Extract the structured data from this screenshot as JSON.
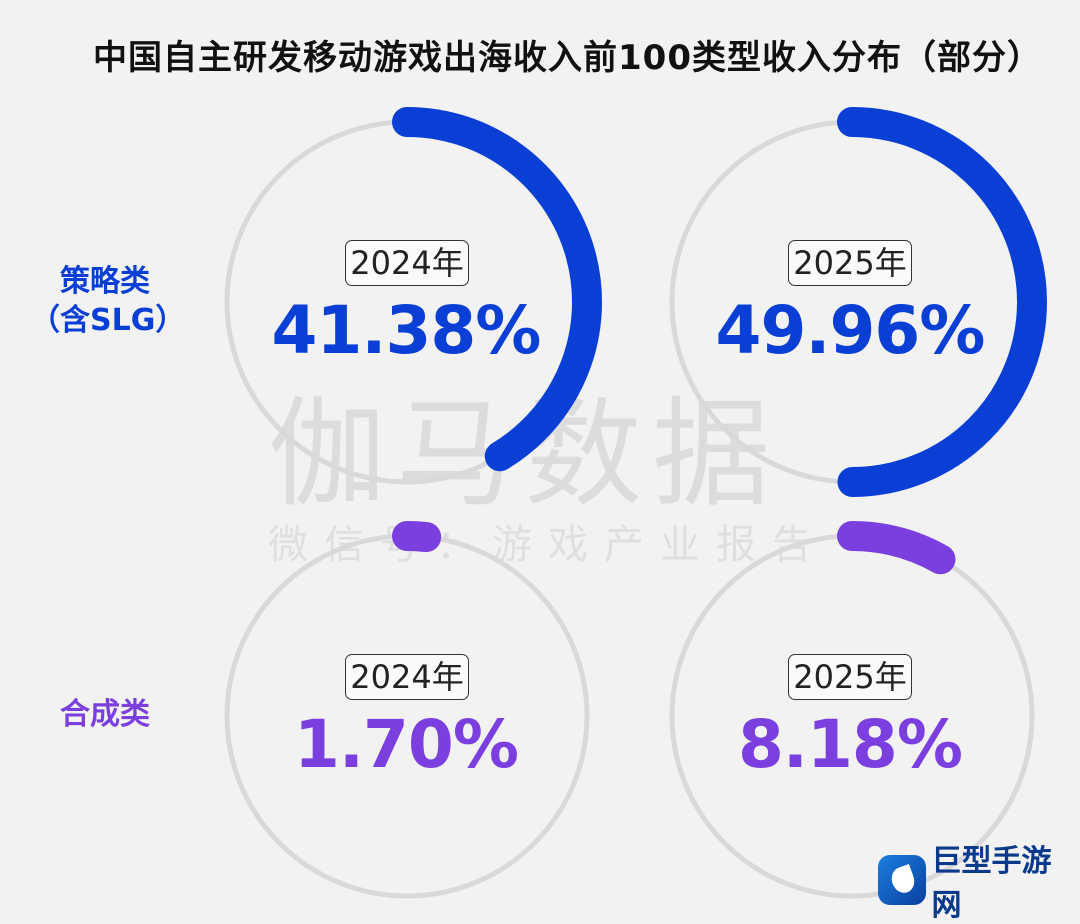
{
  "title": "中国自主研发移动游戏出海收入前100类型收入分布（部分）",
  "colors": {
    "strategy": "#0a3fd6",
    "merge": "#7b3fe0",
    "track": "#d9d9dc"
  },
  "chart_data": {
    "type": "donut",
    "title": "中国自主研发移动游戏出海收入前100类型收入分布（部分）",
    "rows": [
      {
        "category": "策略类（含SLG）",
        "label_line1": "策略类",
        "label_line2": "（含SLG）",
        "color": "#0a3fd6",
        "cells": [
          {
            "year": "2024年",
            "value": 41.38,
            "label": "41.38%"
          },
          {
            "year": "2025年",
            "value": 49.96,
            "label": "49.96%"
          }
        ]
      },
      {
        "category": "合成类",
        "label_line1": "合成类",
        "label_line2": "",
        "color": "#7b3fe0",
        "cells": [
          {
            "year": "2024年",
            "value": 1.7,
            "label": "1.70%"
          },
          {
            "year": "2025年",
            "value": 8.18,
            "label": "8.18%"
          }
        ]
      }
    ]
  },
  "watermark": {
    "main": "伽马数据",
    "sub": "微信号：游戏产业报告"
  },
  "logo": {
    "text": "巨型手游网",
    "icon": "logo-mark-icon"
  }
}
